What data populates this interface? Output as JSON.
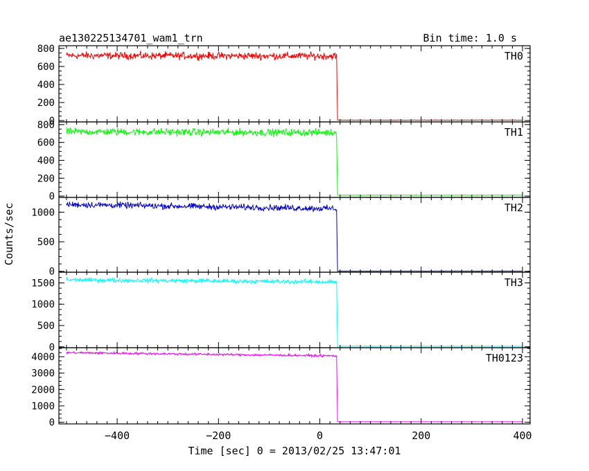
{
  "header": {
    "title": "ae130225134701_wam1_trn",
    "bin_time": "Bin time: 1.0 s"
  },
  "chart_data": {
    "type": "line",
    "title": "ae130225134701_wam1_trn",
    "subtitle": "Bin time: 1.0 s",
    "xlabel": "Time [sec] 0 = 2013/02/25 13:47:01",
    "ylabel": "Counts/sec",
    "xlim": [
      -515,
      415
    ],
    "xticks": [
      -400,
      -200,
      0,
      200,
      400
    ],
    "grid": false,
    "panels": [
      {
        "name": "TH0",
        "color": "#ff0000",
        "ylim": [
          -15,
          830
        ],
        "yticks": [
          0,
          200,
          400,
          600,
          800
        ],
        "segments": [
          {
            "x": [
              -500,
              33
            ],
            "start_level": 720,
            "end_level": 715,
            "noise": 35
          },
          {
            "x": [
              35,
              400
            ],
            "start_level": 5,
            "end_level": 5,
            "noise": 2
          }
        ]
      },
      {
        "name": "TH1",
        "color": "#00ff00",
        "ylim": [
          -15,
          830
        ],
        "yticks": [
          0,
          200,
          400,
          600,
          800
        ],
        "segments": [
          {
            "x": [
              -500,
              33
            ],
            "start_level": 720,
            "end_level": 710,
            "noise": 35
          },
          {
            "x": [
              35,
              400
            ],
            "start_level": 10,
            "end_level": 10,
            "noise": 2
          }
        ]
      },
      {
        "name": "TH2",
        "color": "#0000cc",
        "ylim": [
          -15,
          1250
        ],
        "yticks": [
          0,
          500,
          1000
        ],
        "segments": [
          {
            "x": [
              -500,
              33
            ],
            "start_level": 1130,
            "end_level": 1060,
            "noise": 45
          },
          {
            "x": [
              35,
              400
            ],
            "start_level": 4,
            "end_level": 4,
            "noise": 2
          }
        ]
      },
      {
        "name": "TH3",
        "color": "#00ffff",
        "ylim": [
          -20,
          1750
        ],
        "yticks": [
          0,
          500,
          1000,
          1500
        ],
        "segments": [
          {
            "x": [
              -500,
              33
            ],
            "start_level": 1570,
            "end_level": 1520,
            "noise": 45
          },
          {
            "x": [
              35,
              400
            ],
            "start_level": 15,
            "end_level": 15,
            "noise": 3
          }
        ]
      },
      {
        "name": "TH0123",
        "color": "#ff00ff",
        "ylim": [
          -100,
          4550
        ],
        "yticks": [
          0,
          1000,
          2000,
          3000,
          4000
        ],
        "segments": [
          {
            "x": [
              -500,
              33
            ],
            "start_level": 4250,
            "end_level": 4050,
            "noise": 60
          },
          {
            "x": [
              35,
              400
            ],
            "start_level": 30,
            "end_level": 30,
            "noise": 5
          }
        ]
      }
    ]
  }
}
